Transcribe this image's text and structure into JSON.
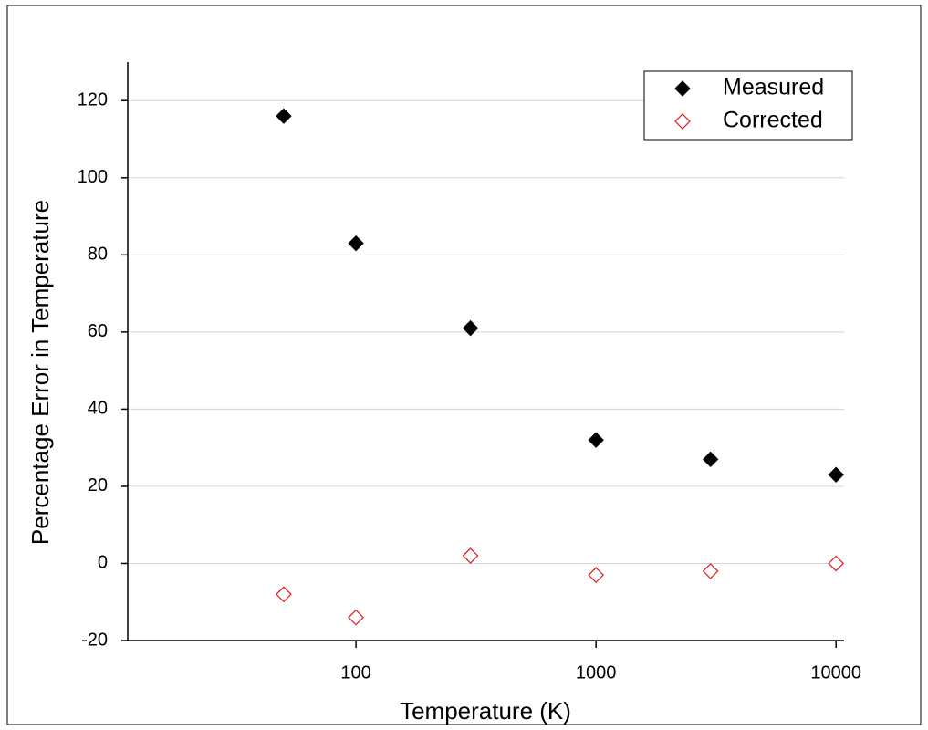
{
  "chart_data": {
    "type": "scatter",
    "xlabel": "Temperature (K)",
    "ylabel": "Percentage Error in Temperature",
    "xscale": "log",
    "xlim": [
      11.2,
      10800
    ],
    "xticks": [
      100,
      1000,
      10000
    ],
    "ylim": [
      -20,
      130
    ],
    "yticks": [
      -20,
      0,
      20,
      40,
      60,
      80,
      100,
      120
    ],
    "grid": true,
    "legend": "upper right",
    "series": [
      {
        "name": "Measured",
        "color": "#000000",
        "marker": "filled-diamond",
        "x": [
          50,
          100,
          300,
          1000,
          3000,
          10000
        ],
        "values": [
          116,
          83,
          61,
          32,
          27,
          23
        ]
      },
      {
        "name": "Corrected",
        "color": "#e31a1c",
        "marker": "open-diamond",
        "x": [
          50,
          100,
          300,
          1000,
          3000,
          10000
        ],
        "values": [
          -8,
          -14,
          2,
          -3,
          -2,
          0
        ]
      }
    ]
  }
}
